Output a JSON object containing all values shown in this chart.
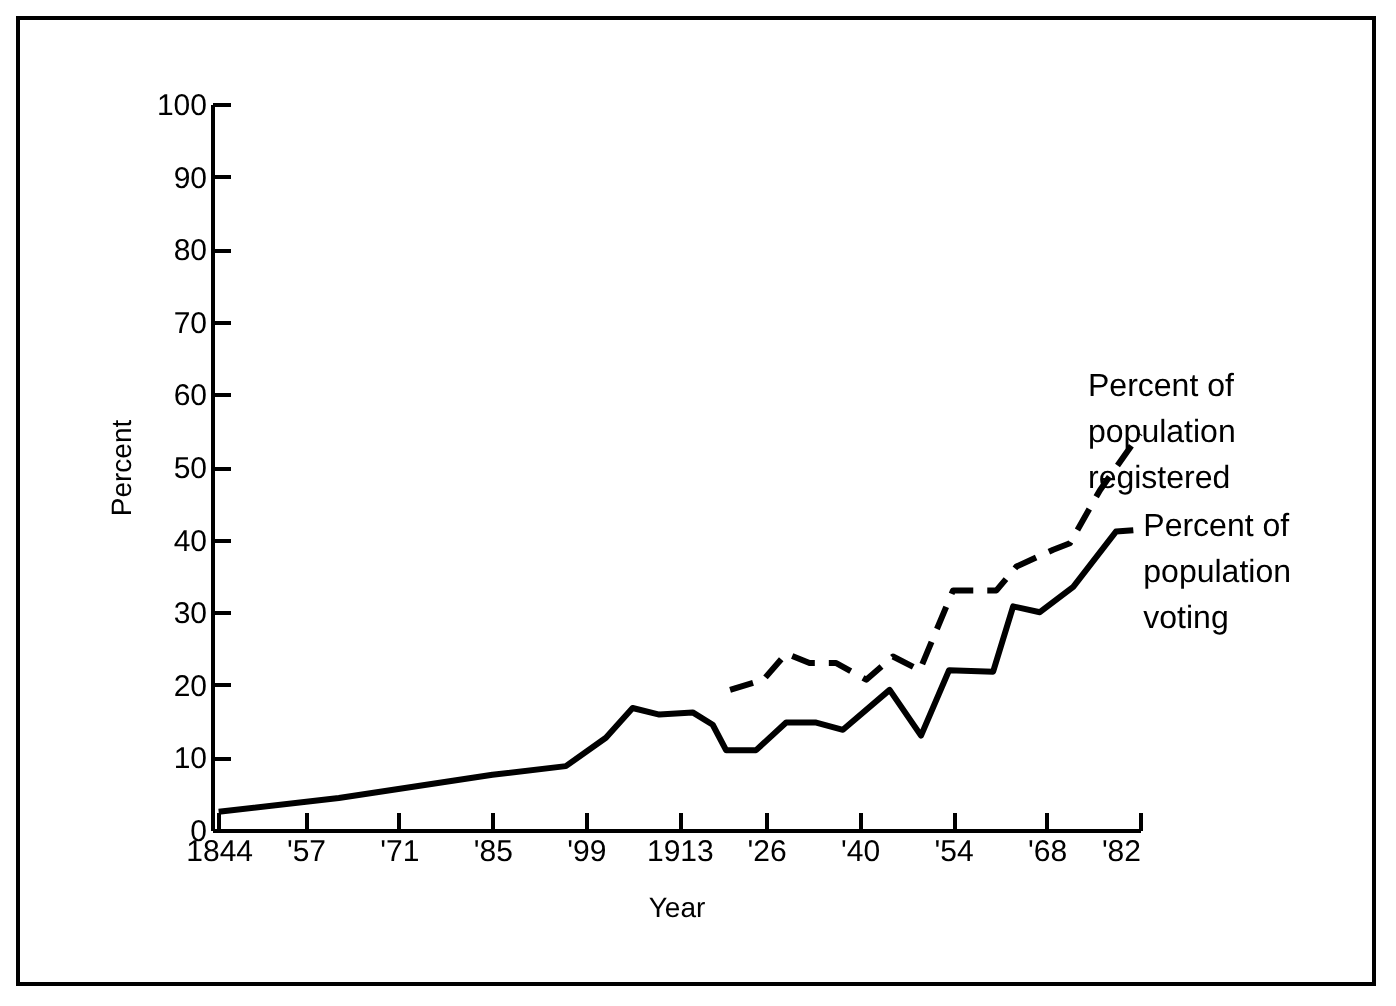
{
  "chart_data": {
    "type": "line",
    "xlabel": "Year",
    "ylabel": "Percent",
    "xlim": [
      1843,
      1982
    ],
    "ylim": [
      0,
      100
    ],
    "xticks": [
      1844,
      {
        "value": 1857,
        "label": "'57"
      },
      {
        "value": 1871,
        "label": "'71"
      },
      {
        "value": 1885,
        "label": "'85"
      },
      {
        "value": 1899,
        "label": "'99"
      },
      1913,
      {
        "value": 1926,
        "label": "'26"
      },
      {
        "value": 1940,
        "label": "'40"
      },
      {
        "value": 1954,
        "label": "'54"
      },
      {
        "value": 1968,
        "label": "'68"
      },
      {
        "value": 1982,
        "label": "'82"
      }
    ],
    "yticks": [
      0,
      10,
      20,
      30,
      40,
      50,
      60,
      70,
      80,
      90,
      100
    ],
    "grid": false,
    "legend": false,
    "marker": "none",
    "series": [
      {
        "name": "Percent of population registered",
        "color": "#000000",
        "line_style": "dashed",
        "x": [
          1920.6,
          1925.6,
          1929,
          1932.5,
          1936.5,
          1941,
          1945,
          1949,
          1954,
          1960.5,
          1963.5,
          1969,
          1971.5,
          1976,
          1982
        ],
        "values": [
          19.3,
          20.7,
          24.3,
          23,
          23,
          20.7,
          23.9,
          22,
          33,
          33,
          36.3,
          38.6,
          39.5,
          46.8,
          54.6
        ]
      },
      {
        "name": "Percent of population voting",
        "color": "#000000",
        "line_style": "solid",
        "x": [
          1844,
          1862,
          1885,
          1896,
          1902,
          1906,
          1910,
          1915,
          1918,
          1920,
          1924.5,
          1929,
          1933.5,
          1937.5,
          1944.5,
          1949.2,
          1953.4,
          1960,
          1963,
          1967,
          1972,
          1978.4,
          1981
        ],
        "values": [
          2.5,
          4.4,
          7.6,
          8.8,
          12.7,
          16.8,
          15.9,
          16.2,
          14.5,
          11,
          11,
          14.8,
          14.8,
          13.8,
          19.3,
          13,
          22,
          21.8,
          30.8,
          30,
          33.5,
          41.1,
          41.3
        ]
      }
    ]
  }
}
